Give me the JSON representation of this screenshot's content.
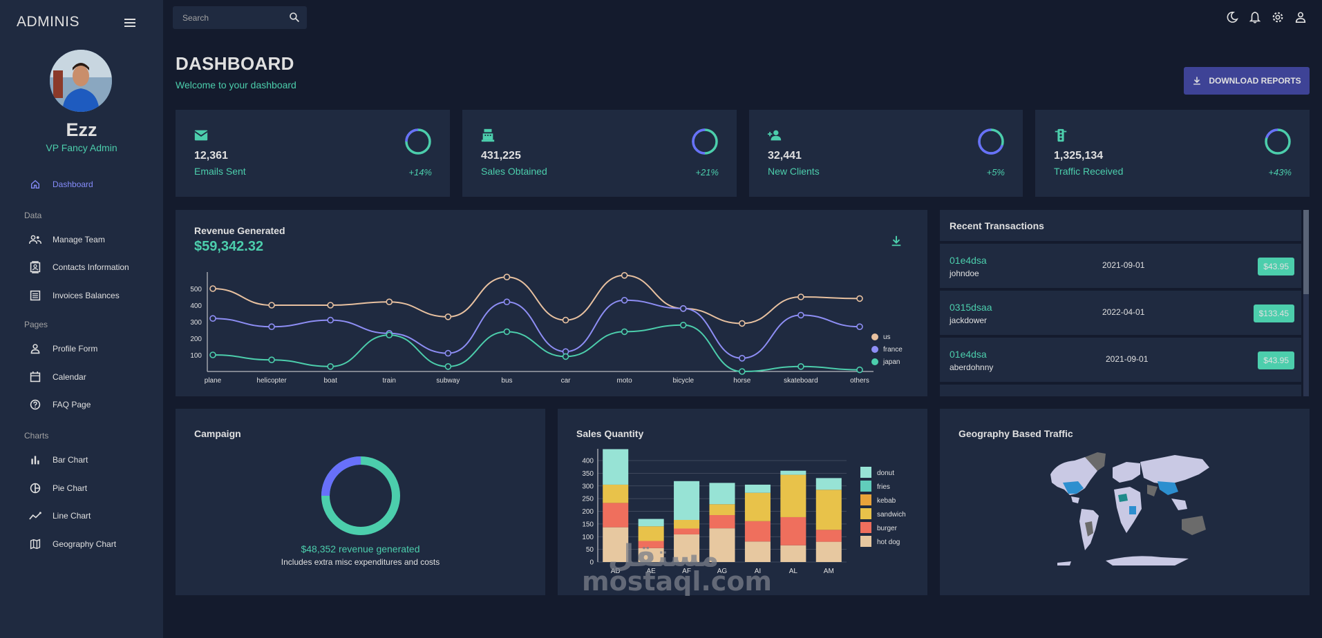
{
  "sidebar": {
    "brand": "ADMINIS",
    "profile": {
      "name": "Ezz",
      "role": "VP Fancy Admin"
    },
    "items": [
      {
        "label": "Dashboard",
        "icon": "home-icon",
        "active": true
      },
      {
        "label": "Manage Team",
        "icon": "people-icon"
      },
      {
        "label": "Contacts Information",
        "icon": "contacts-icon"
      },
      {
        "label": "Invoices Balances",
        "icon": "receipt-icon"
      },
      {
        "label": "Profile Form",
        "icon": "person-icon"
      },
      {
        "label": "Calendar",
        "icon": "calendar-icon"
      },
      {
        "label": "FAQ Page",
        "icon": "help-icon"
      },
      {
        "label": "Bar Chart",
        "icon": "bar-chart-icon"
      },
      {
        "label": "Pie Chart",
        "icon": "pie-chart-icon"
      },
      {
        "label": "Line Chart",
        "icon": "timeline-icon"
      },
      {
        "label": "Geography Chart",
        "icon": "map-icon"
      }
    ],
    "sections": [
      "Data",
      "Pages",
      "Charts"
    ]
  },
  "topbar": {
    "search_placeholder": "Search",
    "icons": [
      "dark-mode-icon",
      "notifications-icon",
      "settings-icon",
      "person-icon"
    ]
  },
  "header": {
    "title": "DASHBOARD",
    "subtitle": "Welcome to your dashboard",
    "download_label": "DOWNLOAD REPORTS"
  },
  "stats": [
    {
      "value": "12,361",
      "label": "Emails Sent",
      "pct": "+14%",
      "progress": 0.75,
      "icon": "email-icon"
    },
    {
      "value": "431,225",
      "label": "Sales Obtained",
      "pct": "+21%",
      "progress": 0.5,
      "icon": "point-of-sale-icon"
    },
    {
      "value": "32,441",
      "label": "New Clients",
      "pct": "+5%",
      "progress": 0.3,
      "icon": "person-add-icon"
    },
    {
      "value": "1,325,134",
      "label": "Traffic Received",
      "pct": "+43%",
      "progress": 0.8,
      "icon": "traffic-icon"
    }
  ],
  "revenue": {
    "title": "Revenue Generated",
    "value": "$59,342.32"
  },
  "transactions": {
    "title": "Recent Transactions",
    "rows": [
      {
        "txId": "01e4dsa",
        "user": "johndoe",
        "date": "2021-09-01",
        "cost": "$43.95"
      },
      {
        "txId": "0315dsaa",
        "user": "jackdower",
        "date": "2022-04-01",
        "cost": "$133.45"
      },
      {
        "txId": "01e4dsa",
        "user": "aberdohnny",
        "date": "2021-09-01",
        "cost": "$43.95"
      }
    ]
  },
  "campaign": {
    "title": "Campaign",
    "revenue_text": "$48,352 revenue generated",
    "note": "Includes extra misc expenditures and costs",
    "progress": 0.75
  },
  "sales": {
    "title": "Sales Quantity"
  },
  "geo": {
    "title": "Geography Based Traffic"
  },
  "watermark": {
    "latin": "mostaql.com",
    "arabic": "مستقل"
  },
  "colors": {
    "bg": "#141b2d",
    "panel": "#1f2a40",
    "accent": "#4cceac",
    "blue": "#6870fa",
    "button": "#3e4396"
  },
  "chart_data": [
    {
      "type": "line",
      "categories": [
        "plane",
        "helicopter",
        "boat",
        "train",
        "subway",
        "bus",
        "car",
        "moto",
        "bicycle",
        "horse",
        "skateboard",
        "others"
      ],
      "series": [
        {
          "name": "us",
          "color": "#e8c1a0",
          "values": [
            500,
            400,
            400,
            420,
            330,
            570,
            310,
            580,
            380,
            290,
            450,
            440
          ]
        },
        {
          "name": "france",
          "color": "#8e8ef5",
          "values": [
            320,
            270,
            310,
            230,
            110,
            420,
            120,
            430,
            380,
            80,
            340,
            270
          ]
        },
        {
          "name": "japan",
          "color": "#4cceac",
          "values": [
            100,
            70,
            30,
            220,
            30,
            240,
            90,
            240,
            280,
            0,
            30,
            10
          ]
        }
      ],
      "yticks": [
        100,
        200,
        300,
        400,
        500
      ],
      "ylim": [
        0,
        600
      ],
      "legend": "right"
    },
    {
      "type": "bar",
      "stacked": true,
      "categories": [
        "AD",
        "AE",
        "AF",
        "AG",
        "AI",
        "AL",
        "AM"
      ],
      "series": [
        {
          "name": "hot dog",
          "color": "#e7c8a0",
          "values": [
            137,
            55,
            109,
            133,
            81,
            66,
            80
          ]
        },
        {
          "name": "burger",
          "color": "#ef6f5d",
          "values": [
            96,
            28,
            23,
            52,
            80,
            111,
            47
          ]
        },
        {
          "name": "sandwich",
          "color": "#e8c24a",
          "values": [
            72,
            58,
            34,
            43,
            112,
            167,
            158
          ]
        },
        {
          "name": "kebab",
          "color": "#e8a33a",
          "values": [
            0,
            0,
            0,
            0,
            0,
            0,
            0
          ]
        },
        {
          "name": "fries",
          "color": "#61cdbb",
          "values": [
            0,
            0,
            0,
            0,
            0,
            0,
            0
          ]
        },
        {
          "name": "donut",
          "color": "#97e3d5",
          "values": [
            140,
            29,
            153,
            84,
            32,
            16,
            46
          ]
        }
      ],
      "yticks": [
        0,
        50,
        100,
        150,
        200,
        250,
        300,
        350,
        400
      ],
      "ylim": [
        0,
        430
      ],
      "legend": "right"
    }
  ]
}
